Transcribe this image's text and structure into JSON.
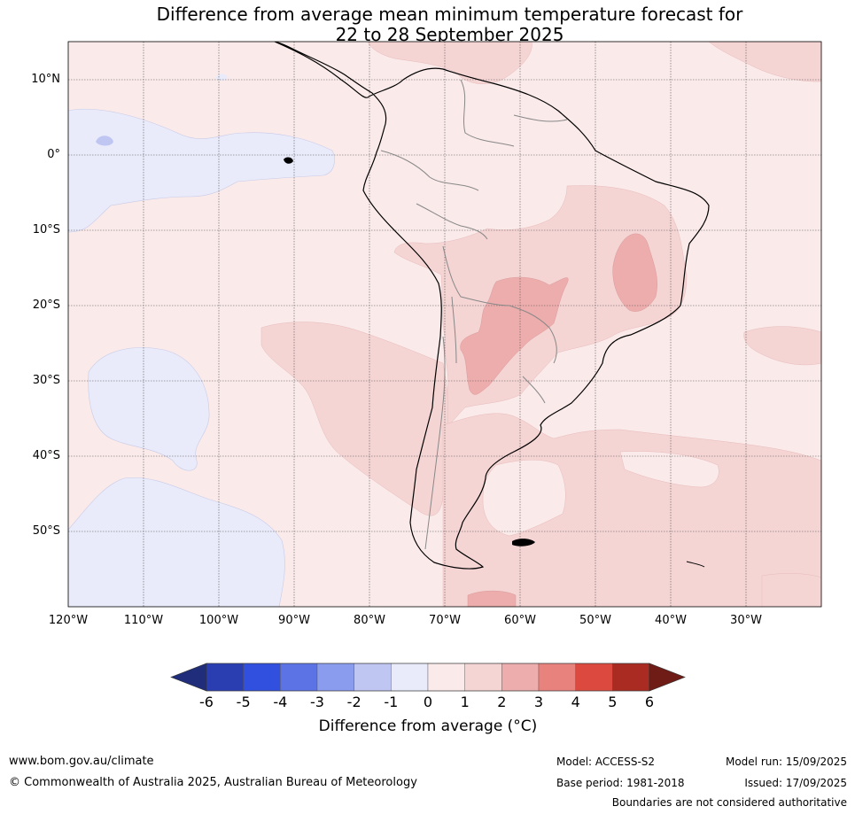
{
  "title": {
    "line1": "Difference from average mean minimum temperature forecast for",
    "line2": "22 to 28 September 2025"
  },
  "map": {
    "lat_labels": [
      "10°N",
      "0°",
      "10°S",
      "20°S",
      "30°S",
      "40°S",
      "50°S"
    ],
    "lon_labels": [
      "120°W",
      "110°W",
      "100°W",
      "90°W",
      "80°W",
      "70°W",
      "60°W",
      "50°W",
      "40°W",
      "30°W"
    ],
    "colors": {
      "neg_1_0": "#e9ebfb",
      "neg_2_1": "#c0c6f2",
      "pos_0_1": "#fbeaea",
      "pos_1_2": "#f5d4d4",
      "pos_2_3": "#eeadad"
    }
  },
  "colorbar": {
    "ticks": [
      "-6",
      "-5",
      "-4",
      "-3",
      "-2",
      "-1",
      "0",
      "1",
      "2",
      "3",
      "4",
      "5",
      "6"
    ],
    "colors": [
      "#1f2d7a",
      "#2a3eb1",
      "#3150e0",
      "#5c73e6",
      "#8a9cee",
      "#c0c6f2",
      "#e9ebfb",
      "#fbeaea",
      "#f5d4d4",
      "#eeadad",
      "#e8827d",
      "#dc4a3f",
      "#a92b22",
      "#6f1c17"
    ],
    "label": "Difference from average (°C)"
  },
  "footer": {
    "website": "www.bom.gov.au/climate",
    "copyright": "© Commonwealth of Australia 2025, Australian Bureau of Meteorology",
    "model": "Model: ACCESS-S2",
    "base_period": "Base period: 1981-2018",
    "model_run": "Model run: 15/09/2025",
    "issued": "Issued: 17/09/2025",
    "disclaimer": "Boundaries are not considered authoritative"
  }
}
